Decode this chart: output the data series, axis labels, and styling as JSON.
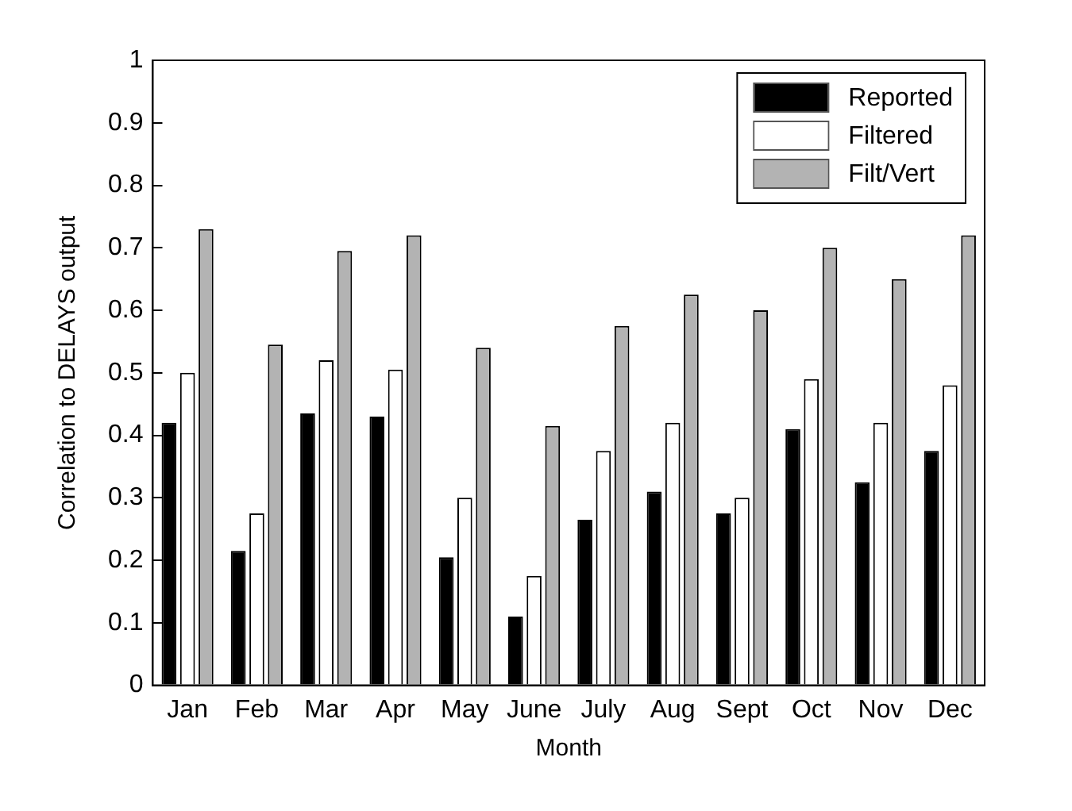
{
  "chart_data": {
    "type": "bar",
    "xlabel": "Month",
    "ylabel": "Correlation to DELAYS output",
    "categories": [
      "Jan",
      "Feb",
      "Mar",
      "Apr",
      "May",
      "June",
      "July",
      "Aug",
      "Sept",
      "Oct",
      "Nov",
      "Dec"
    ],
    "series": [
      {
        "name": "Reported",
        "color": "#000000",
        "values": [
          0.42,
          0.215,
          0.435,
          0.43,
          0.205,
          0.11,
          0.265,
          0.31,
          0.275,
          0.41,
          0.325,
          0.375
        ]
      },
      {
        "name": "Filtered",
        "color": "#ffffff",
        "values": [
          0.5,
          0.275,
          0.52,
          0.505,
          0.3,
          0.175,
          0.375,
          0.42,
          0.3,
          0.49,
          0.42,
          0.48
        ]
      },
      {
        "name": "Filt/Vert",
        "color": "#b3b3b3",
        "values": [
          0.73,
          0.545,
          0.695,
          0.72,
          0.54,
          0.415,
          0.575,
          0.625,
          0.6,
          0.7,
          0.65,
          0.72
        ]
      }
    ],
    "ylim": [
      0,
      1
    ],
    "yticks": [
      0,
      0.1,
      0.2,
      0.3,
      0.4,
      0.5,
      0.6,
      0.7,
      0.8,
      0.9,
      1
    ],
    "grid": false,
    "legend": "top right"
  }
}
